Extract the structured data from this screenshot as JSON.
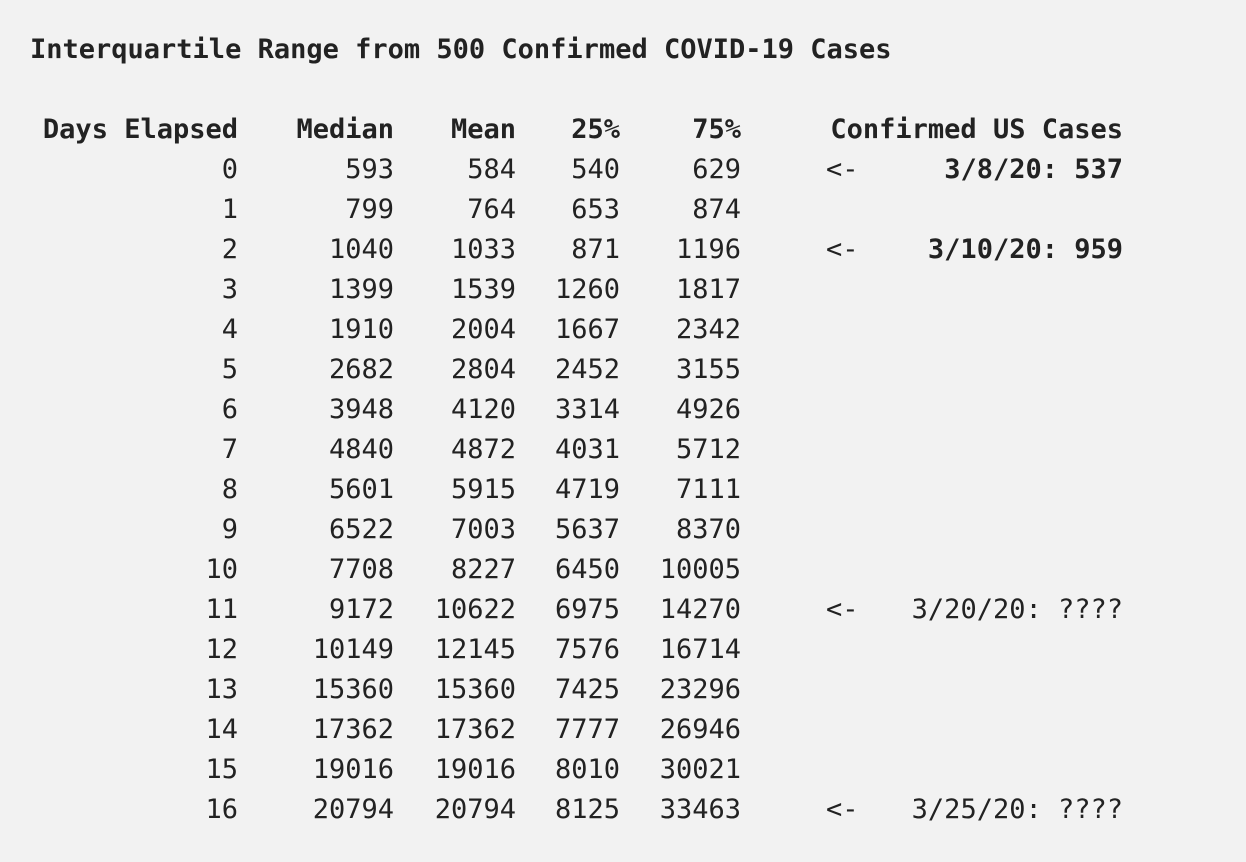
{
  "title": "Interquartile Range from 500 Confirmed COVID-19 Cases",
  "headers": {
    "days": "Days Elapsed",
    "median": "Median",
    "mean": "Mean",
    "p25": "25%",
    "p75": "75%",
    "confirmed": "Confirmed US Cases"
  },
  "rows": [
    {
      "day": "0",
      "median": "593",
      "mean": "584",
      "p25": "540",
      "p75": "629",
      "arrow": "<-",
      "note": "3/8/20: 537",
      "note_bold": true
    },
    {
      "day": "1",
      "median": "799",
      "mean": "764",
      "p25": "653",
      "p75": "874",
      "arrow": "",
      "note": "",
      "note_bold": false
    },
    {
      "day": "2",
      "median": "1040",
      "mean": "1033",
      "p25": "871",
      "p75": "1196",
      "arrow": "<-",
      "note": "3/10/20: 959",
      "note_bold": true
    },
    {
      "day": "3",
      "median": "1399",
      "mean": "1539",
      "p25": "1260",
      "p75": "1817",
      "arrow": "",
      "note": "",
      "note_bold": false
    },
    {
      "day": "4",
      "median": "1910",
      "mean": "2004",
      "p25": "1667",
      "p75": "2342",
      "arrow": "",
      "note": "",
      "note_bold": false
    },
    {
      "day": "5",
      "median": "2682",
      "mean": "2804",
      "p25": "2452",
      "p75": "3155",
      "arrow": "",
      "note": "",
      "note_bold": false
    },
    {
      "day": "6",
      "median": "3948",
      "mean": "4120",
      "p25": "3314",
      "p75": "4926",
      "arrow": "",
      "note": "",
      "note_bold": false
    },
    {
      "day": "7",
      "median": "4840",
      "mean": "4872",
      "p25": "4031",
      "p75": "5712",
      "arrow": "",
      "note": "",
      "note_bold": false
    },
    {
      "day": "8",
      "median": "5601",
      "mean": "5915",
      "p25": "4719",
      "p75": "7111",
      "arrow": "",
      "note": "",
      "note_bold": false
    },
    {
      "day": "9",
      "median": "6522",
      "mean": "7003",
      "p25": "5637",
      "p75": "8370",
      "arrow": "",
      "note": "",
      "note_bold": false
    },
    {
      "day": "10",
      "median": "7708",
      "mean": "8227",
      "p25": "6450",
      "p75": "10005",
      "arrow": "",
      "note": "",
      "note_bold": false
    },
    {
      "day": "11",
      "median": "9172",
      "mean": "10622",
      "p25": "6975",
      "p75": "14270",
      "arrow": "<-",
      "note": "3/20/20: ????",
      "note_bold": false
    },
    {
      "day": "12",
      "median": "10149",
      "mean": "12145",
      "p25": "7576",
      "p75": "16714",
      "arrow": "",
      "note": "",
      "note_bold": false
    },
    {
      "day": "13",
      "median": "15360",
      "mean": "15360",
      "p25": "7425",
      "p75": "23296",
      "arrow": "",
      "note": "",
      "note_bold": false
    },
    {
      "day": "14",
      "median": "17362",
      "mean": "17362",
      "p25": "7777",
      "p75": "26946",
      "arrow": "",
      "note": "",
      "note_bold": false
    },
    {
      "day": "15",
      "median": "19016",
      "mean": "19016",
      "p25": "8010",
      "p75": "30021",
      "arrow": "",
      "note": "",
      "note_bold": false
    },
    {
      "day": "16",
      "median": "20794",
      "mean": "20794",
      "p25": "8125",
      "p75": "33463",
      "arrow": "<-",
      "note": "3/25/20: ????",
      "note_bold": false
    }
  ]
}
